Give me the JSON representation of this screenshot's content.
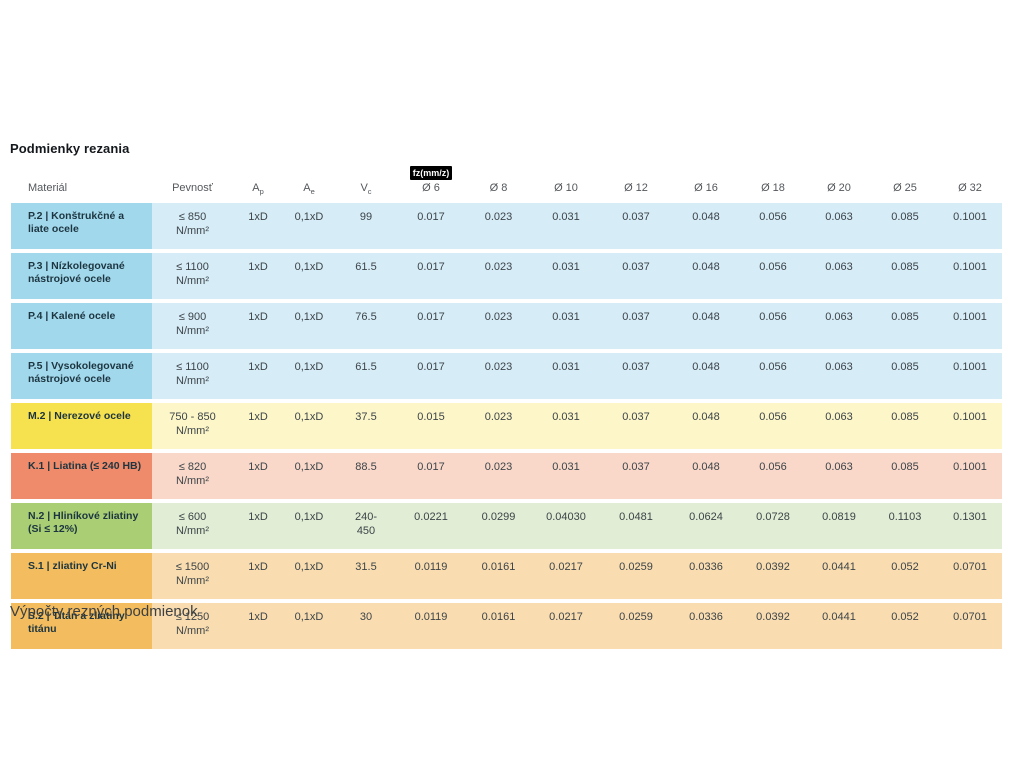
{
  "page": {
    "title": "Podmienky rezania",
    "footer": "Výpočty rezných podmienok"
  },
  "table": {
    "fz_label": "fz(mm/z)",
    "headers": [
      {
        "main": "Materiál"
      },
      {
        "main": "Pevnosť"
      },
      {
        "main": "A",
        "sub": "p"
      },
      {
        "main": "A",
        "sub": "e"
      },
      {
        "main": "V",
        "sub": "c"
      },
      {
        "main": "Ø 6"
      },
      {
        "main": "Ø 8"
      },
      {
        "main": "Ø 10"
      },
      {
        "main": "Ø 12"
      },
      {
        "main": "Ø 16"
      },
      {
        "main": "Ø 18"
      },
      {
        "main": "Ø 20"
      },
      {
        "main": "Ø 25"
      },
      {
        "main": "Ø 32"
      }
    ],
    "colors": {
      "blue": {
        "head": "#a2d8eb",
        "body": "#d6ecf7"
      },
      "yellow": {
        "head": "#f6e14e",
        "body": "#fcf6c8"
      },
      "red": {
        "head": "#ef8a6a",
        "body": "#f9d8c9"
      },
      "green": {
        "head": "#a9ce74",
        "body": "#e1edd4"
      },
      "orange": {
        "head": "#f3bd5f",
        "body": "#f9ddb0"
      }
    },
    "rows": [
      {
        "theme": "blue",
        "material": "P.2 | Konštrukčné a liate ocele",
        "pevnost": "≤ 850\nN/mm²",
        "ap": "1xD",
        "ae": "0,1xD",
        "vc": "99",
        "fz": [
          "0.017",
          "0.023",
          "0.031",
          "0.037",
          "0.048",
          "0.056",
          "0.063",
          "0.085",
          "0.1001"
        ]
      },
      {
        "theme": "blue",
        "material": "P.3 | Nízkolegované nástrojové ocele",
        "pevnost": "≤ 1100\nN/mm²",
        "ap": "1xD",
        "ae": "0,1xD",
        "vc": "61.5",
        "fz": [
          "0.017",
          "0.023",
          "0.031",
          "0.037",
          "0.048",
          "0.056",
          "0.063",
          "0.085",
          "0.1001"
        ]
      },
      {
        "theme": "blue",
        "material": "P.4 | Kalené ocele",
        "pevnost": "≤ 900\nN/mm²",
        "ap": "1xD",
        "ae": "0,1xD",
        "vc": "76.5",
        "fz": [
          "0.017",
          "0.023",
          "0.031",
          "0.037",
          "0.048",
          "0.056",
          "0.063",
          "0.085",
          "0.1001"
        ]
      },
      {
        "theme": "blue",
        "material": "P.5 | Vysokolegované nástrojové ocele",
        "pevnost": "≤ 1100\nN/mm²",
        "ap": "1xD",
        "ae": "0,1xD",
        "vc": "61.5",
        "fz": [
          "0.017",
          "0.023",
          "0.031",
          "0.037",
          "0.048",
          "0.056",
          "0.063",
          "0.085",
          "0.1001"
        ]
      },
      {
        "theme": "yellow",
        "material": "M.2 | Nerezové ocele",
        "pevnost": "750 - 850\nN/mm²",
        "ap": "1xD",
        "ae": "0,1xD",
        "vc": "37.5",
        "fz": [
          "0.015",
          "0.023",
          "0.031",
          "0.037",
          "0.048",
          "0.056",
          "0.063",
          "0.085",
          "0.1001"
        ]
      },
      {
        "theme": "red",
        "material": "K.1 | Liatina (≤ 240 HB)",
        "pevnost": "≤ 820\nN/mm²",
        "ap": "1xD",
        "ae": "0,1xD",
        "vc": "88.5",
        "fz": [
          "0.017",
          "0.023",
          "0.031",
          "0.037",
          "0.048",
          "0.056",
          "0.063",
          "0.085",
          "0.1001"
        ]
      },
      {
        "theme": "green",
        "material": "N.2 | Hliníkové zliatiny (Si ≤ 12%)",
        "pevnost": "≤ 600\nN/mm²",
        "ap": "1xD",
        "ae": "0,1xD",
        "vc": "240-\n450",
        "fz": [
          "0.0221",
          "0.0299",
          "0.04030",
          "0.0481",
          "0.0624",
          "0.0728",
          "0.0819",
          "0.1103",
          "0.1301"
        ]
      },
      {
        "theme": "orange",
        "material": "S.1 | zliatiny Cr-Ni",
        "pevnost": "≤ 1500\nN/mm²",
        "ap": "1xD",
        "ae": "0,1xD",
        "vc": "31.5",
        "fz": [
          "0.0119",
          "0.0161",
          "0.0217",
          "0.0259",
          "0.0336",
          "0.0392",
          "0.0441",
          "0.052",
          "0.0701"
        ]
      },
      {
        "theme": "orange",
        "material": "S.2 | Titán a zliatiny titánu",
        "pevnost": "≤ 1250\nN/mm²",
        "ap": "1xD",
        "ae": "0,1xD",
        "vc": "30",
        "fz": [
          "0.0119",
          "0.0161",
          "0.0217",
          "0.0259",
          "0.0336",
          "0.0392",
          "0.0441",
          "0.052",
          "0.0701"
        ]
      }
    ]
  }
}
